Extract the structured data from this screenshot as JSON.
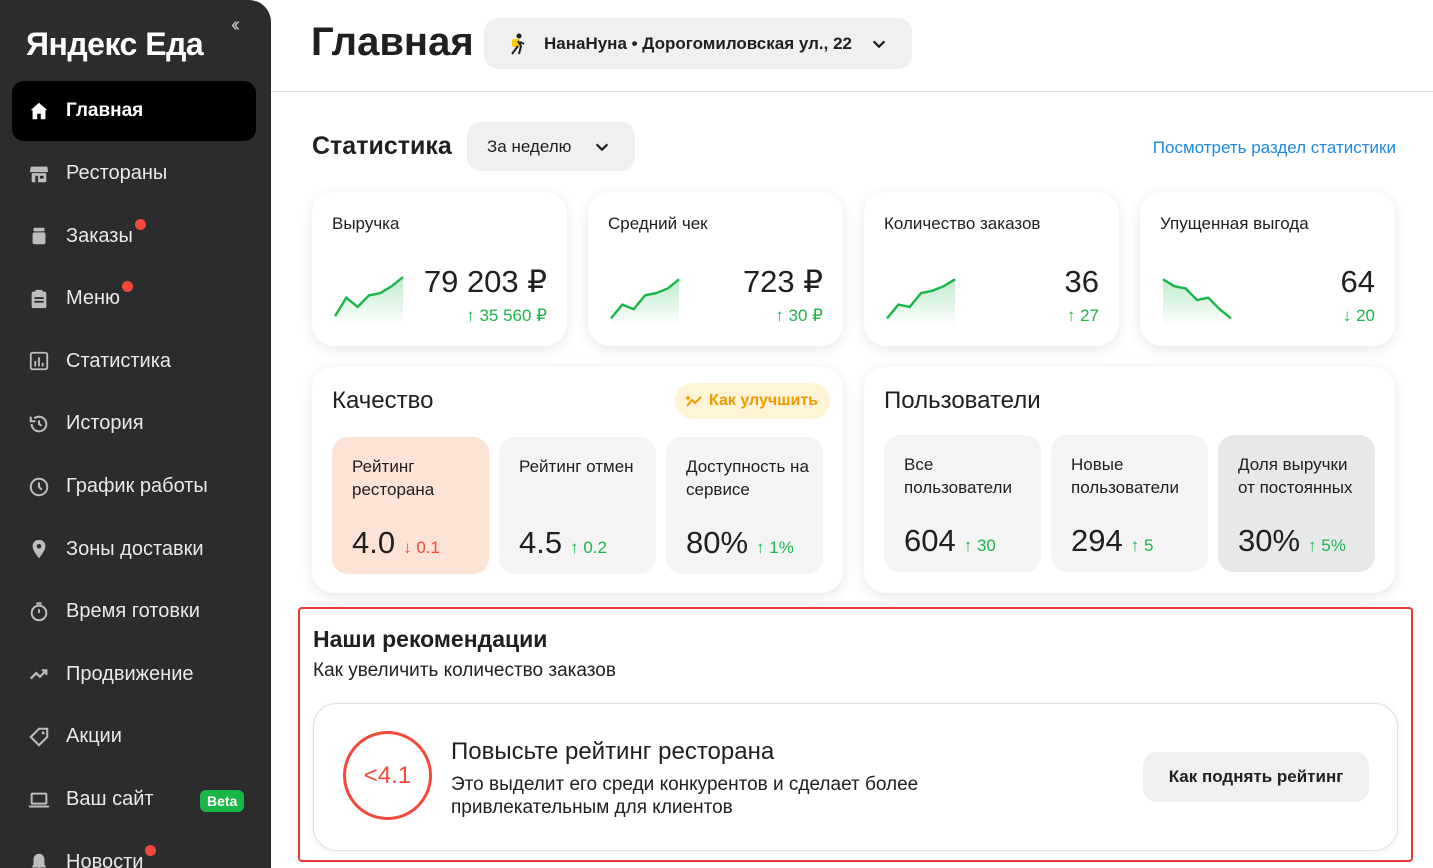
{
  "sidebar": {
    "logo": "Яндекс Еда",
    "collapse_glyph": "‹‹",
    "items": [
      {
        "label": "Главная",
        "icon": "home-icon",
        "active": true
      },
      {
        "label": "Рестораны",
        "icon": "store-icon"
      },
      {
        "label": "Заказы",
        "icon": "bag-icon",
        "badge_dot": true
      },
      {
        "label": "Меню",
        "icon": "clipboard-icon",
        "badge_dot": true
      },
      {
        "label": "Статистика",
        "icon": "chart-icon"
      },
      {
        "label": "История",
        "icon": "history-icon"
      },
      {
        "label": "График работы",
        "icon": "clock-icon"
      },
      {
        "label": "Зоны доставки",
        "icon": "pin-icon"
      },
      {
        "label": "Время готовки",
        "icon": "timer-icon"
      },
      {
        "label": "Продвижение",
        "icon": "trend-icon"
      },
      {
        "label": "Акции",
        "icon": "tag-icon"
      },
      {
        "label": "Ваш сайт",
        "icon": "laptop-icon",
        "badge": "Beta"
      },
      {
        "label": "Новости",
        "icon": "bell-icon",
        "badge_dot": true
      }
    ]
  },
  "header": {
    "title": "Главная",
    "place": "НанаНуна • Дорогомиловская ул., 22"
  },
  "stats": {
    "title": "Статистика",
    "period": "За неделю",
    "link": "Посмотреть раздел статистики",
    "kpis": [
      {
        "label": "Выручка",
        "value": "79 203 ₽",
        "delta": "35 560 ₽",
        "direction": "up",
        "trend": [
          0.15,
          0.55,
          0.35,
          0.6,
          0.65,
          0.8,
          1.0
        ]
      },
      {
        "label": "Средний чек",
        "value": "723 ₽",
        "delta": "30 ₽",
        "direction": "up",
        "trend": [
          0.1,
          0.4,
          0.3,
          0.6,
          0.65,
          0.75,
          0.95
        ]
      },
      {
        "label": "Количество заказов",
        "value": "36",
        "delta": "27",
        "direction": "up",
        "trend": [
          0.1,
          0.4,
          0.35,
          0.65,
          0.7,
          0.8,
          0.95
        ]
      },
      {
        "label": "Упущенная выгода",
        "value": "64",
        "delta": "20",
        "direction": "down",
        "trend": [
          0.95,
          0.8,
          0.75,
          0.5,
          0.55,
          0.3,
          0.1
        ]
      }
    ]
  },
  "quality": {
    "title": "Качество",
    "improve": "Как улучшить",
    "tiles": [
      {
        "label": "Рейтинг ресторана",
        "value": "4.0",
        "delta": "0.1",
        "direction": "down",
        "highlight": "#fde3d6"
      },
      {
        "label": "Рейтинг отмен",
        "value": "4.5",
        "delta": "0.2",
        "direction": "up"
      },
      {
        "label": "Доступность на сервисе",
        "value": "80%",
        "delta": "1%",
        "direction": "up"
      }
    ]
  },
  "users": {
    "title": "Пользователи",
    "tiles": [
      {
        "label": "Все пользователи",
        "value": "604",
        "delta": "30",
        "direction": "up"
      },
      {
        "label": "Новые пользователи",
        "value": "294",
        "delta": "5",
        "direction": "up"
      },
      {
        "label": "Доля выручки от постоянных",
        "value": "30%",
        "delta": "5%",
        "direction": "up",
        "highlight": "#e7e8ea"
      }
    ]
  },
  "recommendations": {
    "title": "Наши рекомендации",
    "subtitle": "Как увеличить количество заказов",
    "card": {
      "badge": "<4.1",
      "title": "Повысьте рейтинг ресторана",
      "text": "Это выделит его среди конкурентов и сделает более привлекательным для клиентов",
      "button": "Как поднять рейтинг"
    }
  },
  "colors": {
    "up": "#1bb648",
    "down": "#f4483b",
    "link": "#1e88e5",
    "accent_red": "#e53935"
  }
}
